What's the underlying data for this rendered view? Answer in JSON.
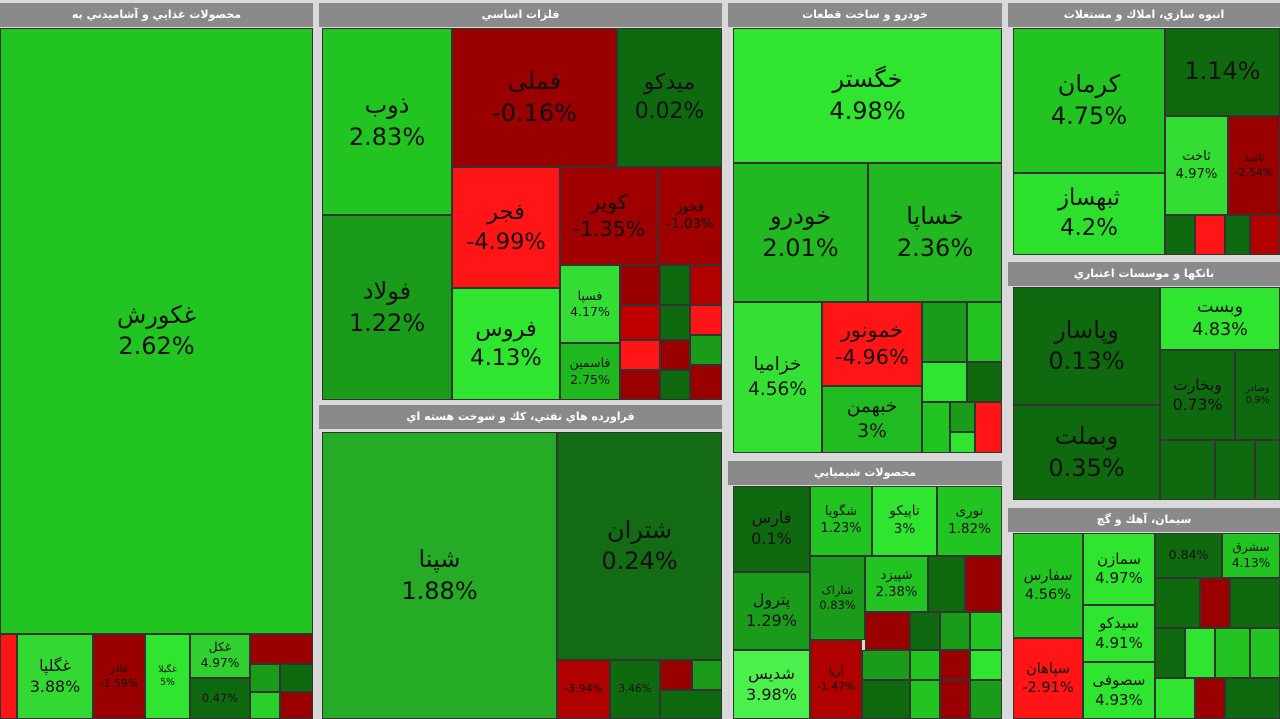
{
  "panels": [
    {
      "title": "محصولات غذايي و آشاميدني به",
      "tiles": [
        {
          "name": "غکورش",
          "change": "2.62%"
        },
        {
          "name": "غگلپا",
          "change": "3.88%"
        },
        {
          "name": "غاذر",
          "change": "-1.59%"
        },
        {
          "name": "غگیلا",
          "change": "5%"
        },
        {
          "name": "غکل",
          "change": "4.97%"
        },
        {
          "change": "0.47%"
        }
      ]
    },
    {
      "title": "فلزات اساسي",
      "tiles": [
        {
          "name": "ذوب",
          "change": "2.83%"
        },
        {
          "name": "فولاد",
          "change": "1.22%"
        },
        {
          "name": "فملی",
          "change": "-0.16%"
        },
        {
          "name": "میدکو",
          "change": "0.02%"
        },
        {
          "name": "فجر",
          "change": "-4.99%"
        },
        {
          "name": "کویر",
          "change": "-1.35%"
        },
        {
          "name": "فخوز",
          "change": "-1.03%"
        },
        {
          "name": "فروس",
          "change": "4.13%"
        },
        {
          "name": "فسپا",
          "change": "4.17%"
        },
        {
          "name": "فاسمین",
          "change": "2.75%"
        }
      ]
    },
    {
      "title": "فراورده هاي نفتي، كك و سوخت هسته اي",
      "tiles": [
        {
          "name": "شپنا",
          "change": "1.88%"
        },
        {
          "name": "شتران",
          "change": "0.24%"
        },
        {
          "change": "-3.94%"
        },
        {
          "change": "3.46%"
        }
      ]
    },
    {
      "title": "خودرو و ساخت قطعات",
      "tiles": [
        {
          "name": "خگستر",
          "change": "4.98%"
        },
        {
          "name": "خودرو",
          "change": "2.01%"
        },
        {
          "name": "خساپا",
          "change": "2.36%"
        },
        {
          "name": "خزامیا",
          "change": "4.56%"
        },
        {
          "name": "خمونور",
          "change": "-4.96%"
        },
        {
          "name": "خبهمن",
          "change": "3%"
        }
      ]
    },
    {
      "title": "محصولات شيميايي",
      "tiles": [
        {
          "name": "فارس",
          "change": "0.1%"
        },
        {
          "name": "شگویا",
          "change": "1.23%"
        },
        {
          "name": "تاپیکو",
          "change": "3%"
        },
        {
          "name": "نوری",
          "change": "1.82%"
        },
        {
          "name": "پترول",
          "change": "1.29%"
        },
        {
          "name": "شاراک",
          "change": "0.83%"
        },
        {
          "name": "شپیزد",
          "change": "2.38%"
        },
        {
          "name": "شدیس",
          "change": "3.98%"
        },
        {
          "name": "آریا",
          "change": "-1.47%"
        }
      ]
    },
    {
      "title": "انبوه سازي، املاك و مستغلات",
      "tiles": [
        {
          "name": "کرمان",
          "change": "4.75%"
        },
        {
          "name": "ثبهساز",
          "change": "4.2%"
        },
        {
          "change": "1.14%"
        },
        {
          "name": "ثاخت",
          "change": "4.97%"
        },
        {
          "name": "ثامید",
          "change": "-2.54%"
        }
      ]
    },
    {
      "title": "بانكها و موسسات اعتباري",
      "tiles": [
        {
          "name": "وپاسار",
          "change": "0.13%"
        },
        {
          "name": "وبملت",
          "change": "0.35%"
        },
        {
          "name": "وبست",
          "change": "4.83%"
        },
        {
          "name": "وبخارت",
          "change": "0.73%"
        },
        {
          "name": "وصادر",
          "change": "0.9%"
        }
      ]
    },
    {
      "title": "سيمان، آهك و گچ",
      "tiles": [
        {
          "name": "سفارس",
          "change": "4.56%"
        },
        {
          "name": "سپاهان",
          "change": "-2.91%"
        },
        {
          "name": "سمازن",
          "change": "4.97%"
        },
        {
          "name": "سیدکو",
          "change": "4.91%"
        },
        {
          "name": "سصوفی",
          "change": "4.93%"
        },
        {
          "change": "0.84%"
        },
        {
          "name": "سشرق",
          "change": "4.13%"
        }
      ]
    }
  ]
}
